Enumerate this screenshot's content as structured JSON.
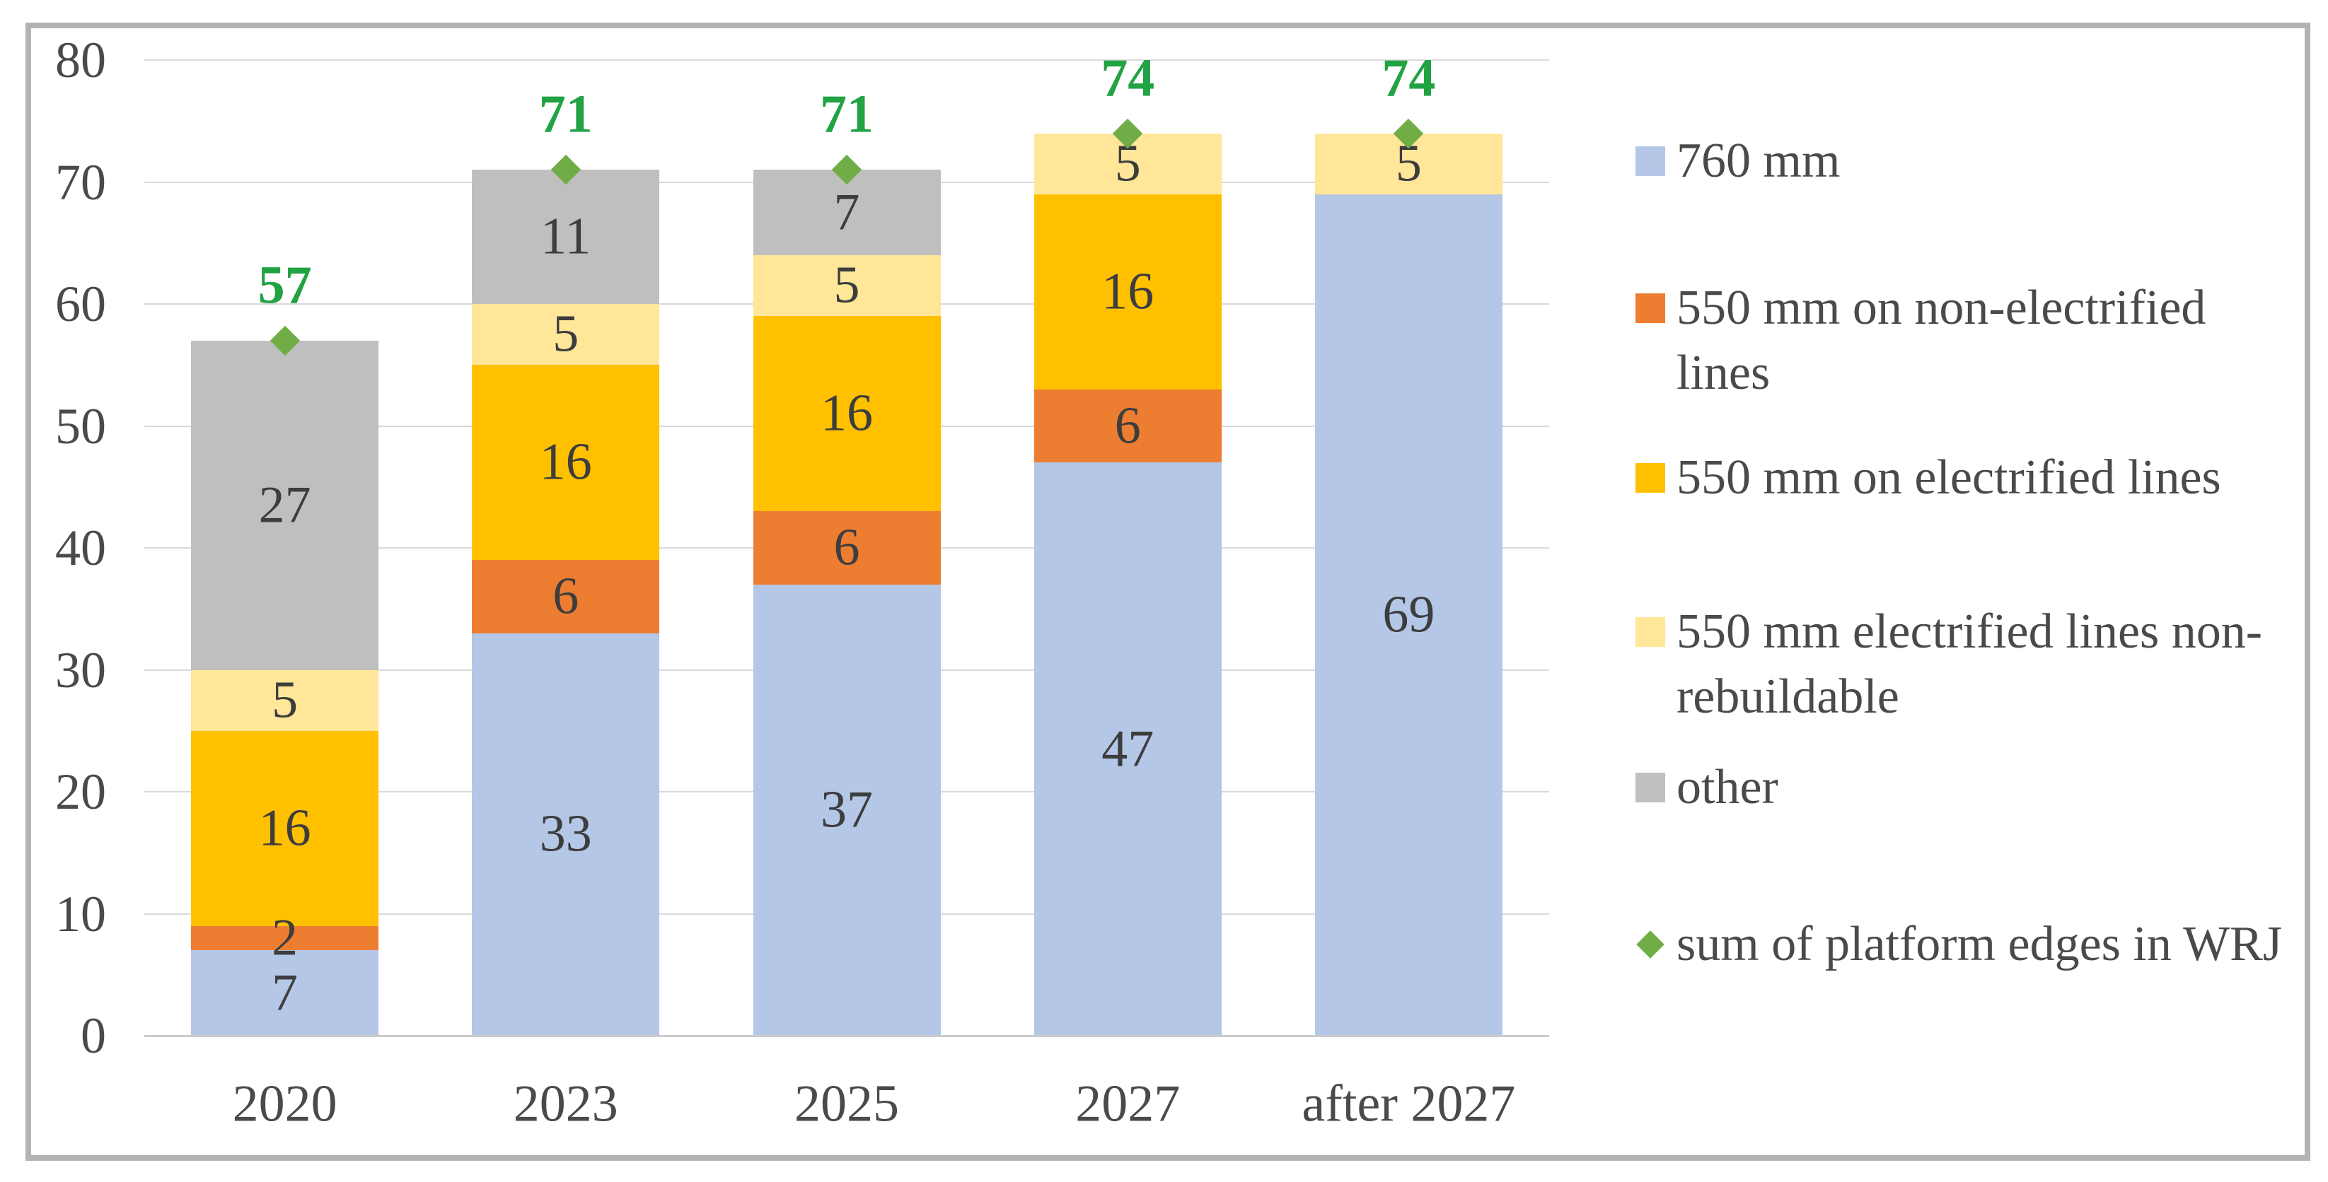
{
  "figure": {
    "background": "#ffffff",
    "border_color": "#b3b3b3",
    "gridline_color": "#d9d9d9",
    "axis_line_color": "#cccccc",
    "axis_label_color": "#4a4a4a",
    "bar_label_color": "#3d3d3d"
  },
  "chart_data": {
    "type": "bar",
    "stacked": true,
    "title": "",
    "xlabel": "",
    "ylabel": "",
    "categories": [
      "2020",
      "2023",
      "2025",
      "2027",
      "after 2027"
    ],
    "series": [
      {
        "name": "760 mm",
        "color": "#b4c7e7",
        "values": [
          7,
          33,
          37,
          47,
          69
        ]
      },
      {
        "name": "550 mm on non-electrified lines",
        "color": "#ed7d31",
        "values": [
          2,
          6,
          6,
          6,
          0
        ]
      },
      {
        "name": "550 mm on electrified lines",
        "color": "#ffc000",
        "values": [
          16,
          16,
          16,
          16,
          0
        ]
      },
      {
        "name": "550 mm electrified lines non-rebuildable",
        "color": "#ffe699",
        "values": [
          5,
          5,
          5,
          5,
          5
        ]
      },
      {
        "name": "other",
        "color": "#bfbfbf",
        "values": [
          27,
          11,
          7,
          0,
          0
        ]
      }
    ],
    "marker_series": {
      "name": "sum of platform edges in WRJ",
      "marker": "diamond",
      "color": "#70ad47",
      "label_color": "#21a243",
      "values": [
        57,
        71,
        71,
        74,
        74
      ]
    },
    "ylim": [
      0,
      80
    ],
    "yticks": [
      0,
      10,
      20,
      30,
      40,
      50,
      60,
      70,
      80
    ],
    "grid": true,
    "legend_position": "right"
  }
}
